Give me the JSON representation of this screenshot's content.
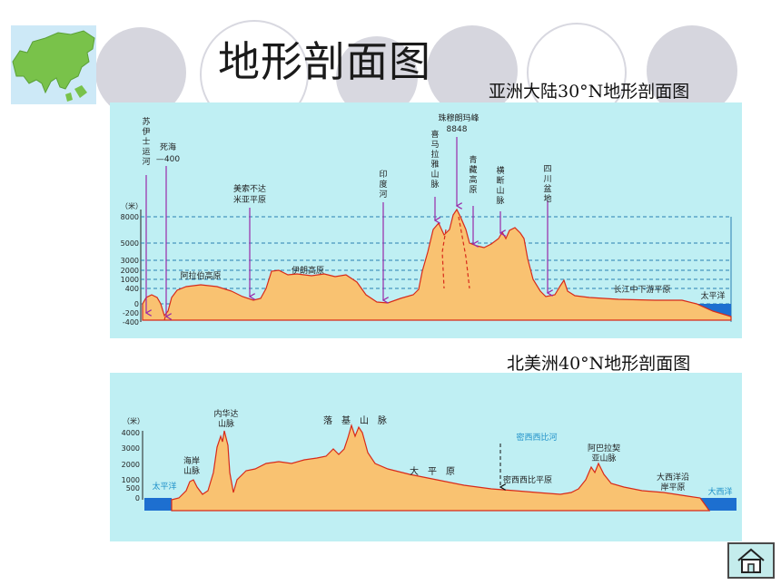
{
  "slide": {
    "title": "地形剖面图",
    "home_button_label": "home"
  },
  "asia_profile": {
    "caption": "亚洲大陆30°N地形剖面图",
    "unit_label": "（米）",
    "y_ticks": [
      "8000",
      "5000",
      "3000",
      "2000",
      "1000",
      "400",
      "0",
      "-200",
      "-400"
    ],
    "labels": {
      "suez": "苏\n伊\n士\n运\n河",
      "dead_sea": "死海",
      "dead_sea_value": "—400",
      "mesopotamia": "美索不达\n米亚平原",
      "arabian": "阿拉伯高原",
      "iran": "伊朗高原",
      "indus": "印\n度\n河",
      "everest": "珠穆朗玛峰",
      "everest_height": "8848",
      "himalaya": "喜\n马\n拉\n雅\n山\n脉",
      "tibet": "青\n藏\n高\n原",
      "hengduan": "横\n断\n山\n脉",
      "sichuan": "四\n川\n盆\n地",
      "yangtze": "长江中下游平原",
      "pacific": "太平洋"
    }
  },
  "na_profile": {
    "caption": "北美洲40°N地形剖面图",
    "unit_label": "（米）",
    "y_ticks": [
      "4000",
      "3000",
      "2000",
      "1000",
      "500",
      "0"
    ],
    "labels": {
      "pacific": "太平洋",
      "coast_range": "海岸\n山脉",
      "sierra_nevada": "内华达\n山脉",
      "rockies": "落　基　山　脉",
      "great_plains": "大　平　原",
      "mississippi_river": "密西西比河",
      "mississippi_plain": "密西西比平原",
      "appalachian": "阿巴拉契\n亚山脉",
      "atlantic_plain": "大西洋沿\n岸平原",
      "atlantic": "大西洋"
    }
  },
  "colors": {
    "panel": "#bfeff3",
    "terrain": "#f9c271",
    "terrain_edge": "#d82a1a",
    "arrow": "#9a2aa8",
    "grid": "#2a7fb0",
    "water": "#1d6fd0",
    "accent_label": "#1c8fc8"
  },
  "icons": {
    "map": "asia-map-icon",
    "home": "home-icon"
  }
}
